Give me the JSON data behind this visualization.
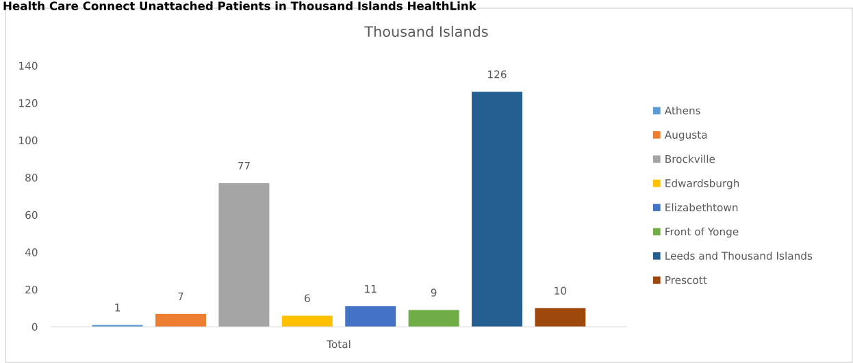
{
  "chart_data": {
    "type": "bar",
    "annotations": [
      "Health Care Connect Unattached Patients in Thousand Islands HealthLink"
    ],
    "title": "Thousand Islands",
    "categories": [
      "Total"
    ],
    "series": [
      {
        "name": "Athens",
        "color": "#5b9bd5",
        "values": [
          1
        ]
      },
      {
        "name": "Augusta",
        "color": "#ed7d31",
        "values": [
          7
        ]
      },
      {
        "name": "Brockville",
        "color": "#a5a5a5",
        "values": [
          77
        ]
      },
      {
        "name": "Edwardsburgh",
        "color": "#ffc000",
        "values": [
          6
        ]
      },
      {
        "name": "Elizabethtown",
        "color": "#4472c4",
        "values": [
          11
        ]
      },
      {
        "name": "Front of Yonge",
        "color": "#70ad47",
        "values": [
          9
        ]
      },
      {
        "name": "Leeds and Thousand Islands",
        "color": "#255e91",
        "values": [
          126
        ]
      },
      {
        "name": "Prescott",
        "color": "#9e480e",
        "values": [
          10
        ]
      }
    ],
    "ylim": [
      0,
      140
    ],
    "yticks": [
      0,
      20,
      40,
      60,
      80,
      100,
      120,
      140
    ],
    "data_labels": true,
    "grid": false,
    "legend": "right"
  }
}
